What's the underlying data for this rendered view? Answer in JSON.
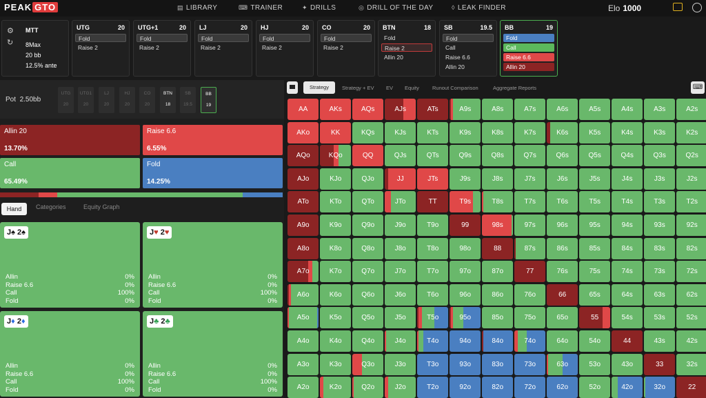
{
  "logo": {
    "peak": "PEAK",
    "gto": "GTO"
  },
  "nav": [
    {
      "label": "LIBRARY",
      "icon": "library-icon"
    },
    {
      "label": "TRAINER",
      "icon": "gamepad-icon"
    },
    {
      "label": "DRILLS",
      "icon": "drills-icon"
    },
    {
      "label": "DRILL OF THE DAY",
      "icon": "target-icon"
    },
    {
      "label": "LEAK FINDER",
      "icon": "drop-icon"
    }
  ],
  "elo": {
    "label": "Elo",
    "value": "1000"
  },
  "game": {
    "format": "MTT",
    "table": "8Max",
    "depth": "20 bb",
    "ante": "12.5% ante"
  },
  "positions": [
    {
      "name": "UTG",
      "stack": "20",
      "actions": [
        "Fold",
        "Raise 2"
      ]
    },
    {
      "name": "UTG+1",
      "stack": "20",
      "actions": [
        "Fold",
        "Raise 2"
      ]
    },
    {
      "name": "LJ",
      "stack": "20",
      "actions": [
        "Fold",
        "Raise 2"
      ]
    },
    {
      "name": "HJ",
      "stack": "20",
      "actions": [
        "Fold",
        "Raise 2"
      ]
    },
    {
      "name": "CO",
      "stack": "20",
      "actions": [
        "Fold",
        "Raise 2"
      ]
    },
    {
      "name": "BTN",
      "stack": "18",
      "actions": [
        "Fold",
        "Raise 2",
        "Allin 20"
      ]
    },
    {
      "name": "SB",
      "stack": "19.5",
      "actions": [
        "Fold",
        "Call",
        "Raise 6.6",
        "Allin 20"
      ]
    },
    {
      "name": "BB",
      "stack": "19",
      "actions": [
        "Fold",
        "Call",
        "Raise 6.6",
        "Allin 20"
      ]
    }
  ],
  "pot": {
    "label": "Pot",
    "value": "2.50bb"
  },
  "stacks": [
    {
      "pos": "UTG",
      "stack": "20"
    },
    {
      "pos": "UTG1",
      "stack": "20"
    },
    {
      "pos": "LJ",
      "stack": "20"
    },
    {
      "pos": "HJ",
      "stack": "20"
    },
    {
      "pos": "CO",
      "stack": "20"
    },
    {
      "pos": "BTN",
      "stack": "18"
    },
    {
      "pos": "SB",
      "stack": "19.5"
    },
    {
      "pos": "BB",
      "stack": "19"
    }
  ],
  "summary": [
    {
      "label": "Allin 20",
      "pct": "13.70%",
      "color": "#8c2424"
    },
    {
      "label": "Raise 6.6",
      "pct": "6.55%",
      "color": "#e04848"
    },
    {
      "label": "Call",
      "pct": "65.49%",
      "color": "#69b86b"
    },
    {
      "label": "Fold",
      "pct": "14.25%",
      "color": "#4a7fc1"
    }
  ],
  "freq_fractions": [
    0.137,
    0.0655,
    0.6549,
    0.1425
  ],
  "left_tabs": [
    "Hand",
    "Categories",
    "Equity Graph"
  ],
  "combos": [
    {
      "rank1": "J",
      "suit1": "♠",
      "rank2": "2",
      "suit2": "♠",
      "color": "#111",
      "rows": [
        [
          "Allin",
          "0%"
        ],
        [
          "Raise 6.6",
          "0%"
        ],
        [
          "Call",
          "100%"
        ],
        [
          "Fold",
          "0%"
        ]
      ]
    },
    {
      "rank1": "J",
      "suit1": "♥",
      "rank2": "2",
      "suit2": "♥",
      "color": "#c0392b",
      "rows": [
        [
          "Allin",
          "0%"
        ],
        [
          "Raise 6.6",
          "0%"
        ],
        [
          "Call",
          "100%"
        ],
        [
          "Fold",
          "0%"
        ]
      ]
    },
    {
      "rank1": "J",
      "suit1": "♦",
      "rank2": "2",
      "suit2": "♦",
      "color": "#2d6cdf",
      "rows": [
        [
          "Allin",
          "0%"
        ],
        [
          "Raise 6.6",
          "0%"
        ],
        [
          "Call",
          "100%"
        ],
        [
          "Fold",
          "0%"
        ]
      ]
    },
    {
      "rank1": "J",
      "suit1": "♣",
      "rank2": "2",
      "suit2": "♣",
      "color": "#2e9e4f",
      "rows": [
        [
          "Allin",
          "0%"
        ],
        [
          "Raise 6.6",
          "0%"
        ],
        [
          "Call",
          "100%"
        ],
        [
          "Fold",
          "0%"
        ]
      ]
    }
  ],
  "right_tabs": [
    "Strategy",
    "Strategy + EV",
    "EV",
    "Equity",
    "Runout Comparison",
    "Aggregate Reports"
  ],
  "colors": {
    "allin": "#8c2424",
    "raise": "#e04848",
    "call": "#69b86b",
    "fold": "#4a7fc1"
  },
  "matrix": {
    "ranks": [
      "A",
      "K",
      "Q",
      "J",
      "T",
      "9",
      "8",
      "7",
      "6",
      "5",
      "4",
      "3",
      "2"
    ],
    "mix": {
      "AA": [
        0,
        1,
        0,
        0
      ],
      "AKs": [
        0,
        1,
        0,
        0
      ],
      "AQs": [
        0,
        1,
        0,
        0
      ],
      "AJs": [
        0.6,
        0.4,
        0,
        0
      ],
      "ATs": [
        1,
        0,
        0,
        0
      ],
      "A9s": [
        0.05,
        0.07,
        0.88,
        0
      ],
      "AKo": [
        0,
        1,
        0,
        0
      ],
      "KK": [
        0,
        1,
        0,
        0
      ],
      "K6s": [
        0.1,
        0,
        0.9,
        0
      ],
      "AQo": [
        1,
        0,
        0,
        0
      ],
      "KQo": [
        0.45,
        0.15,
        0.4,
        0
      ],
      "QQ": [
        0,
        1,
        0,
        0
      ],
      "AJo": [
        1,
        0,
        0,
        0
      ],
      "JJ": [
        0.1,
        0.9,
        0,
        0
      ],
      "JTs": [
        0,
        1,
        0,
        0
      ],
      "ATo": [
        1,
        0,
        0,
        0
      ],
      "JTo": [
        0,
        0.2,
        0.8,
        0
      ],
      "TT": [
        1,
        0,
        0,
        0
      ],
      "T9s": [
        0,
        0.75,
        0.25,
        0
      ],
      "T8s": [
        0,
        0.05,
        0.95,
        0
      ],
      "A9o": [
        1,
        0,
        0,
        0
      ],
      "99": [
        1,
        0,
        0,
        0
      ],
      "98s": [
        0,
        0.95,
        0.05,
        0
      ],
      "A8o": [
        1,
        0,
        0,
        0
      ],
      "88": [
        1,
        0,
        0,
        0
      ],
      "87s": [
        0.05,
        0,
        0.95,
        0
      ],
      "A7o": [
        0.65,
        0.15,
        0.2,
        0
      ],
      "77": [
        1,
        0,
        0,
        0
      ],
      "A6o": [
        0.05,
        0.05,
        0.9,
        0
      ],
      "66": [
        1,
        0,
        0,
        0
      ],
      "A5o": [
        0,
        0.05,
        0.9,
        0.05
      ],
      "T5o": [
        0.05,
        0.1,
        0.4,
        0.45
      ],
      "95o": [
        0.05,
        0.05,
        0.35,
        0.55
      ],
      "55": [
        0.75,
        0.25,
        0,
        0
      ],
      "J4o": [
        0,
        0.05,
        0.95,
        0
      ],
      "T4o": [
        0,
        0.05,
        0.15,
        0.8
      ],
      "94o": [
        0,
        0,
        0,
        1
      ],
      "84o": [
        0.05,
        0,
        0,
        0.95
      ],
      "74o": [
        0,
        0.1,
        0.3,
        0.6
      ],
      "44": [
        1,
        0,
        0,
        0
      ],
      "Q3o": [
        0,
        0.3,
        0.7,
        0
      ],
      "T3o": [
        0,
        0,
        0,
        1
      ],
      "93o": [
        0,
        0,
        0,
        1
      ],
      "83o": [
        0,
        0,
        0,
        1
      ],
      "73o": [
        0,
        0,
        0,
        1
      ],
      "63o": [
        0,
        0.05,
        0.45,
        0.5
      ],
      "33": [
        1,
        0,
        0,
        0
      ],
      "K2o": [
        0,
        0.1,
        0.9,
        0
      ],
      "Q2o": [
        0,
        0.05,
        0.95,
        0
      ],
      "J2o": [
        0,
        0.1,
        0.9,
        0
      ],
      "T2o": [
        0,
        0,
        0,
        1
      ],
      "92o": [
        0,
        0,
        0,
        1
      ],
      "82o": [
        0,
        0,
        0,
        1
      ],
      "72o": [
        0,
        0,
        0,
        1
      ],
      "62o": [
        0,
        0,
        0,
        1
      ],
      "42o": [
        0,
        0,
        0.2,
        0.8
      ],
      "32o": [
        0,
        0,
        0.05,
        0.95
      ],
      "22": [
        1,
        0,
        0,
        0
      ]
    }
  }
}
